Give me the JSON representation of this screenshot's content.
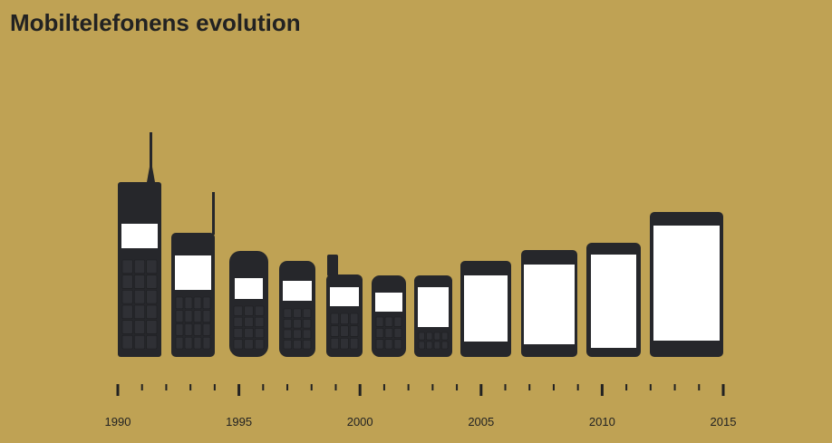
{
  "title": "Mobiltelefonens evolution",
  "colors": {
    "background": "#bfa254",
    "phone_body": "#26272b",
    "screen": "#ffffff",
    "text": "#222222"
  },
  "timeline": {
    "start_year": 1990,
    "end_year": 2015,
    "minor_step": 1,
    "labels": [
      "1990",
      "1995",
      "2000",
      "2005",
      "2010",
      "2015"
    ]
  },
  "phones": [
    {
      "name": "phone-brick",
      "style": "brick"
    },
    {
      "name": "phone-antenna-keypad",
      "style": "antenna-keypad"
    },
    {
      "name": "phone-rounded-1",
      "style": "rounded-keypad"
    },
    {
      "name": "phone-rounded-2",
      "style": "rounded-keypad"
    },
    {
      "name": "phone-stub-antenna",
      "style": "stub-antenna"
    },
    {
      "name": "phone-compact",
      "style": "compact-keypad"
    },
    {
      "name": "phone-qwerty",
      "style": "compact-keypad"
    },
    {
      "name": "phone-touch-1",
      "style": "touchscreen"
    },
    {
      "name": "phone-touch-2",
      "style": "touchscreen"
    },
    {
      "name": "phone-touch-3",
      "style": "touchscreen"
    },
    {
      "name": "phone-touch-4",
      "style": "touchscreen"
    }
  ]
}
